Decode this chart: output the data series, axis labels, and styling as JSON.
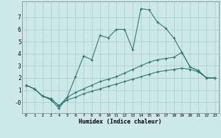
{
  "xlabel": "Humidex (Indice chaleur)",
  "background_color": "#cde8e8",
  "grid_color": "#aacccc",
  "line_color": "#2a7a6e",
  "x_values": [
    0,
    1,
    2,
    3,
    4,
    5,
    6,
    7,
    8,
    9,
    10,
    11,
    12,
    13,
    14,
    15,
    16,
    17,
    18,
    19,
    20,
    21,
    22,
    23
  ],
  "series1": [
    1.4,
    1.1,
    0.5,
    0.2,
    -0.5,
    0.4,
    2.1,
    3.8,
    3.5,
    5.5,
    5.3,
    6.0,
    6.0,
    4.3,
    7.7,
    7.6,
    6.6,
    6.1,
    5.3,
    4.1,
    2.9,
    2.6,
    2.0,
    2.0
  ],
  "series2": [
    1.4,
    1.1,
    0.5,
    0.3,
    -0.3,
    0.4,
    0.8,
    1.1,
    1.4,
    1.7,
    1.9,
    2.1,
    2.4,
    2.7,
    3.0,
    3.3,
    3.5,
    3.6,
    3.7,
    4.1,
    2.9,
    2.6,
    2.0,
    2.0
  ],
  "series3": [
    1.4,
    1.1,
    0.5,
    0.3,
    -0.3,
    0.2,
    0.4,
    0.7,
    0.9,
    1.1,
    1.3,
    1.5,
    1.7,
    1.9,
    2.1,
    2.3,
    2.5,
    2.6,
    2.7,
    2.8,
    2.7,
    2.5,
    2.0,
    2.0
  ],
  "ylim": [
    -0.9,
    8.3
  ],
  "xlim": [
    -0.5,
    23.5
  ],
  "yticks": [
    0,
    1,
    2,
    3,
    4,
    5,
    6,
    7
  ],
  "ytick_labels": [
    "-0",
    "1",
    "2",
    "3",
    "4",
    "5",
    "6",
    "7"
  ],
  "xticks": [
    0,
    1,
    2,
    3,
    4,
    5,
    6,
    7,
    8,
    9,
    10,
    11,
    12,
    13,
    14,
    15,
    16,
    17,
    18,
    19,
    20,
    21,
    22,
    23
  ]
}
